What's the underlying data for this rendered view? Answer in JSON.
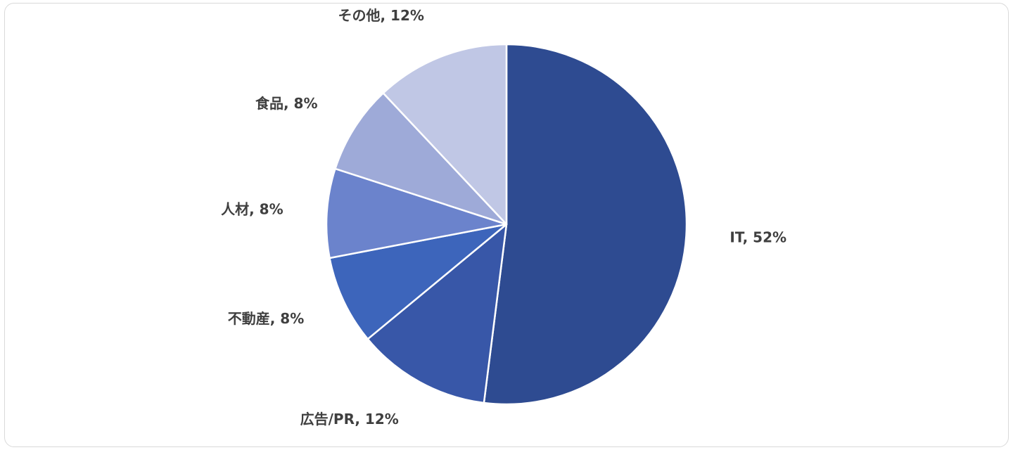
{
  "chart_data": {
    "type": "pie",
    "slices": [
      {
        "label": "IT, 52%",
        "value": 52,
        "color": "#2e4b91"
      },
      {
        "label": "広告/PR, 12%",
        "value": 12,
        "color": "#3857a8"
      },
      {
        "label": "不動産, 8%",
        "value": 8,
        "color": "#3d65bb"
      },
      {
        "label": "人材, 8%",
        "value": 8,
        "color": "#6b83cc"
      },
      {
        "label": "食品, 8%",
        "value": 8,
        "color": "#9eaad8"
      },
      {
        "label": "その他, 12%",
        "value": 12,
        "color": "#c0c7e5"
      }
    ],
    "start_angle_deg": 0,
    "direction": "clockwise"
  }
}
